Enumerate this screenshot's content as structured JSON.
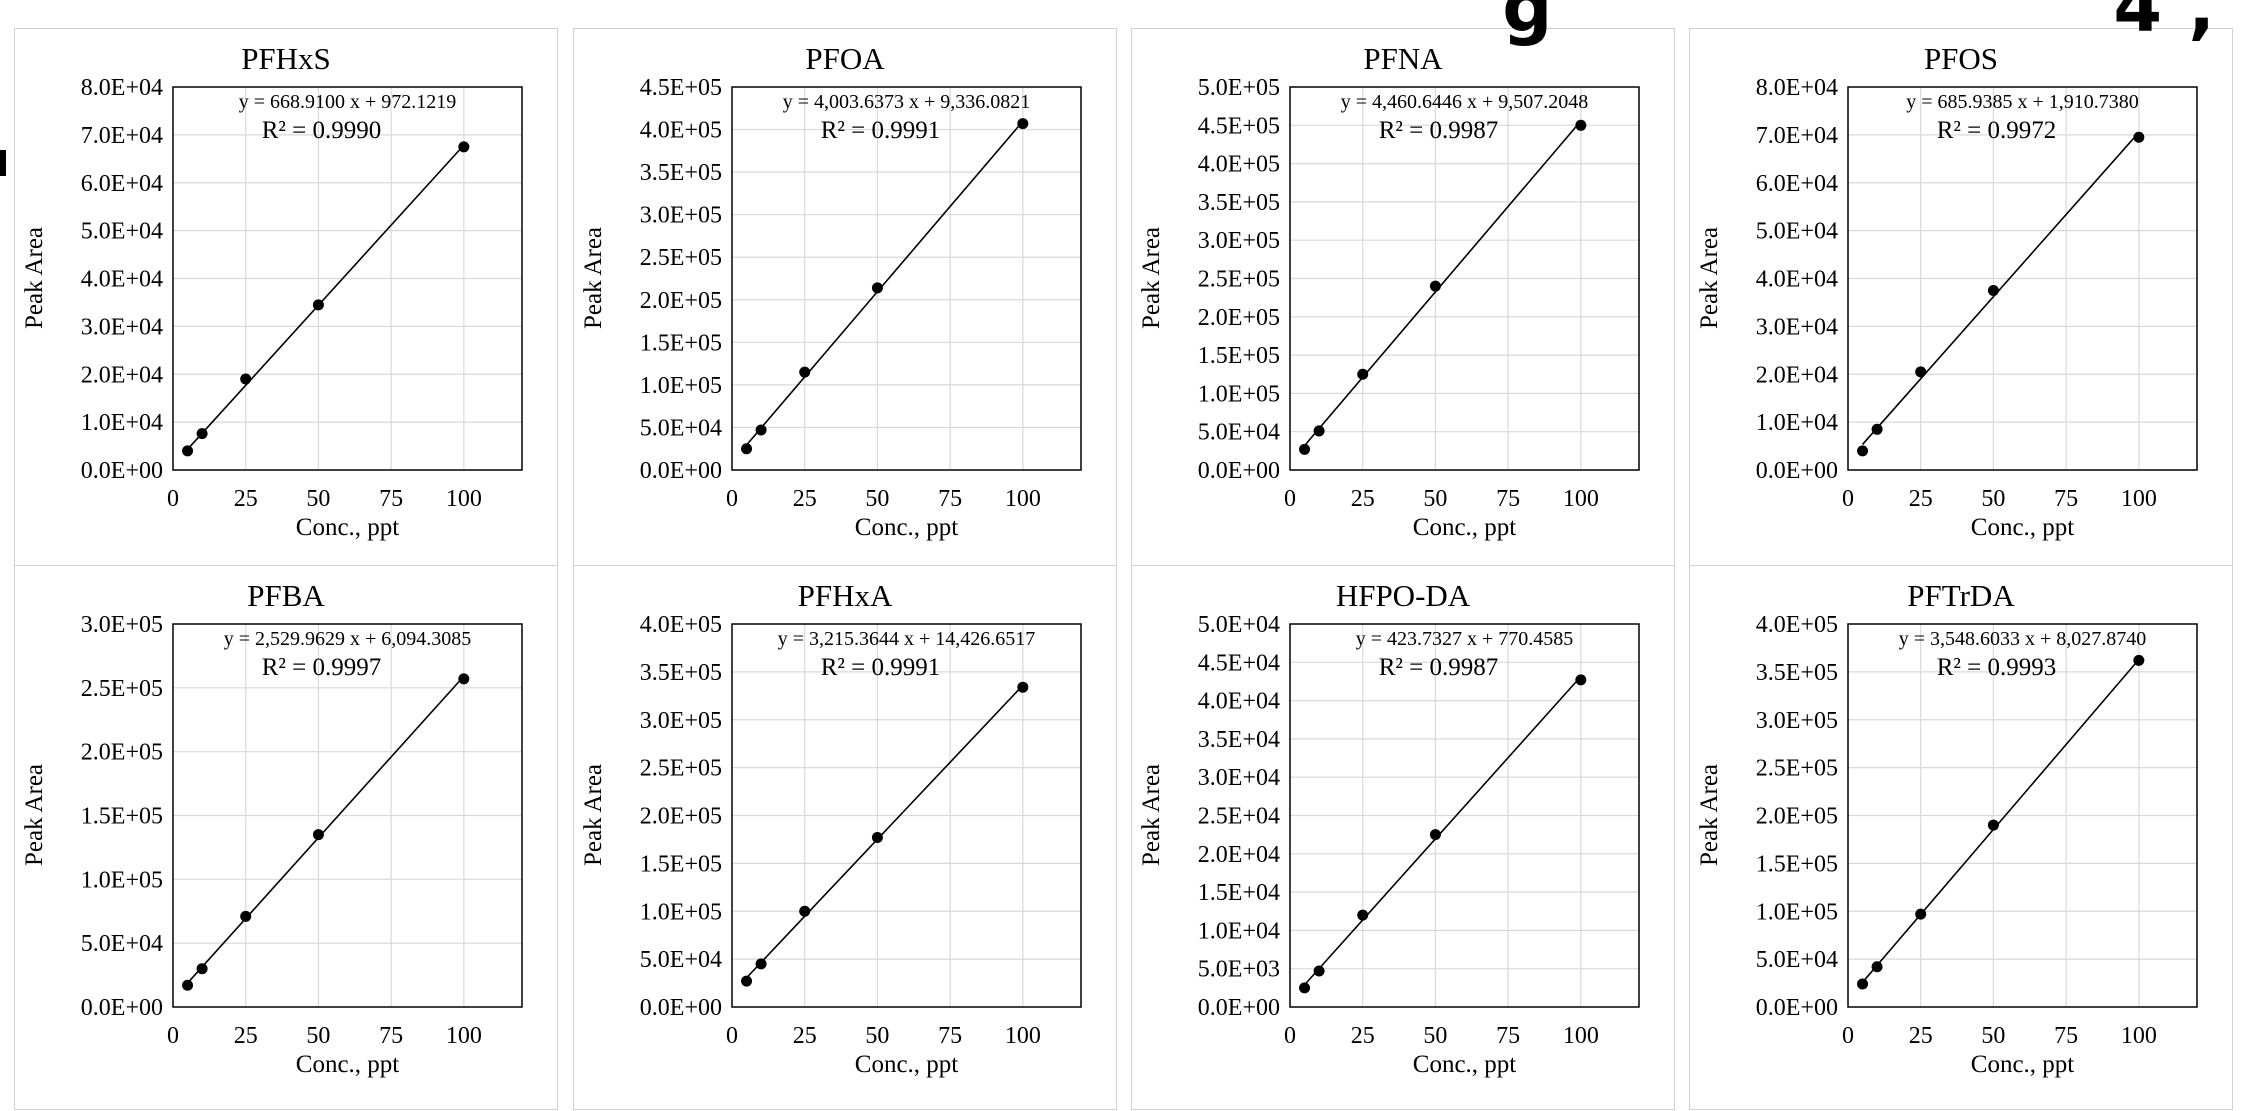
{
  "banner_fragment": "g",
  "banner_fragment_right": "4 ,",
  "chart_data": [
    {
      "type": "scatter",
      "title": "PFHxS",
      "xlabel": "Conc., ppt",
      "ylabel": "Peak Area",
      "x": [
        5,
        10,
        25,
        50,
        100
      ],
      "y": [
        4000,
        7600,
        19000,
        34500,
        67500
      ],
      "fit": {
        "slope": 668.91,
        "intercept": 972.1219
      },
      "equation": "y = 668.9100 x + 972.1219",
      "r2": "R² = 0.9990",
      "xlim": [
        0,
        120
      ],
      "ylim": [
        0,
        80000
      ],
      "xticks": [
        "0",
        "25",
        "50",
        "75",
        "100"
      ],
      "yticks": [
        "0.0E+00",
        "1.0E+04",
        "2.0E+04",
        "3.0E+04",
        "4.0E+04",
        "5.0E+04",
        "6.0E+04",
        "7.0E+04",
        "8.0E+04"
      ]
    },
    {
      "type": "scatter",
      "title": "PFOA",
      "xlabel": "Conc., ppt",
      "ylabel": "Peak Area",
      "x": [
        5,
        10,
        25,
        50,
        100
      ],
      "y": [
        25000,
        47000,
        115000,
        214000,
        407000
      ],
      "fit": {
        "slope": 4003.6373,
        "intercept": 9336.0821
      },
      "equation": "y = 4,003.6373 x + 9,336.0821",
      "r2": "R² = 0.9991",
      "xlim": [
        0,
        120
      ],
      "ylim": [
        0,
        450000
      ],
      "xticks": [
        "0",
        "25",
        "50",
        "75",
        "100"
      ],
      "yticks": [
        "0.0E+00",
        "5.0E+04",
        "1.0E+05",
        "1.5E+05",
        "2.0E+05",
        "2.5E+05",
        "3.0E+05",
        "3.5E+05",
        "4.0E+05",
        "4.5E+05"
      ]
    },
    {
      "type": "scatter",
      "title": "PFNA",
      "xlabel": "Conc., ppt",
      "ylabel": "Peak Area",
      "x": [
        5,
        10,
        25,
        50,
        100
      ],
      "y": [
        27000,
        51000,
        125000,
        240000,
        450000
      ],
      "fit": {
        "slope": 4460.6446,
        "intercept": 9507.2048
      },
      "equation": "y = 4,460.6446 x + 9,507.2048",
      "r2": "R² = 0.9987",
      "xlim": [
        0,
        120
      ],
      "ylim": [
        0,
        500000
      ],
      "xticks": [
        "0",
        "25",
        "50",
        "75",
        "100"
      ],
      "yticks": [
        "0.0E+00",
        "5.0E+04",
        "1.0E+05",
        "1.5E+05",
        "2.0E+05",
        "2.5E+05",
        "3.0E+05",
        "3.5E+05",
        "4.0E+05",
        "4.5E+05",
        "5.0E+05"
      ]
    },
    {
      "type": "scatter",
      "title": "PFOS",
      "xlabel": "Conc., ppt",
      "ylabel": "Peak Area",
      "x": [
        5,
        10,
        25,
        50,
        100
      ],
      "y": [
        4000,
        8500,
        20500,
        37500,
        69500
      ],
      "fit": {
        "slope": 685.9385,
        "intercept": 1910.738
      },
      "equation": "y = 685.9385 x + 1,910.7380",
      "r2": "R² = 0.9972",
      "xlim": [
        0,
        120
      ],
      "ylim": [
        0,
        80000
      ],
      "xticks": [
        "0",
        "25",
        "50",
        "75",
        "100"
      ],
      "yticks": [
        "0.0E+00",
        "1.0E+04",
        "2.0E+04",
        "3.0E+04",
        "4.0E+04",
        "5.0E+04",
        "6.0E+04",
        "7.0E+04",
        "8.0E+04"
      ]
    },
    {
      "type": "scatter",
      "title": "PFBA",
      "xlabel": "Conc., ppt",
      "ylabel": "Peak Area",
      "x": [
        5,
        10,
        25,
        50,
        100
      ],
      "y": [
        17000,
        30000,
        71000,
        135000,
        257000
      ],
      "fit": {
        "slope": 2529.9629,
        "intercept": 6094.3085
      },
      "equation": "y = 2,529.9629 x + 6,094.3085",
      "r2": "R² = 0.9997",
      "xlim": [
        0,
        120
      ],
      "ylim": [
        0,
        300000
      ],
      "xticks": [
        "0",
        "25",
        "50",
        "75",
        "100"
      ],
      "yticks": [
        "0.0E+00",
        "5.0E+04",
        "1.0E+05",
        "1.5E+05",
        "2.0E+05",
        "2.5E+05",
        "3.0E+05"
      ]
    },
    {
      "type": "scatter",
      "title": "PFHxA",
      "xlabel": "Conc., ppt",
      "ylabel": "Peak Area",
      "x": [
        5,
        10,
        25,
        50,
        100
      ],
      "y": [
        27000,
        45000,
        100000,
        177000,
        334000
      ],
      "fit": {
        "slope": 3215.3644,
        "intercept": 14426.6517
      },
      "equation": "y = 3,215.3644 x + 14,426.6517",
      "r2": "R² = 0.9991",
      "xlim": [
        0,
        120
      ],
      "ylim": [
        0,
        400000
      ],
      "xticks": [
        "0",
        "25",
        "50",
        "75",
        "100"
      ],
      "yticks": [
        "0.0E+00",
        "5.0E+04",
        "1.0E+05",
        "1.5E+05",
        "2.0E+05",
        "2.5E+05",
        "3.0E+05",
        "3.5E+05",
        "4.0E+05"
      ]
    },
    {
      "type": "scatter",
      "title": "HFPO-DA",
      "xlabel": "Conc., ppt",
      "ylabel": "Peak Area",
      "x": [
        5,
        10,
        25,
        50,
        100
      ],
      "y": [
        2500,
        4700,
        12000,
        22500,
        42700
      ],
      "fit": {
        "slope": 423.7327,
        "intercept": 770.4585
      },
      "equation": "y = 423.7327 x + 770.4585",
      "r2": "R² = 0.9987",
      "xlim": [
        0,
        120
      ],
      "ylim": [
        0,
        50000
      ],
      "xticks": [
        "0",
        "25",
        "50",
        "75",
        "100"
      ],
      "yticks": [
        "0.0E+00",
        "5.0E+03",
        "1.0E+04",
        "1.5E+04",
        "2.0E+04",
        "2.5E+04",
        "3.0E+04",
        "3.5E+04",
        "4.0E+04",
        "4.5E+04",
        "5.0E+04"
      ]
    },
    {
      "type": "scatter",
      "title": "PFTrDA",
      "xlabel": "Conc., ppt",
      "ylabel": "Peak Area",
      "x": [
        5,
        10,
        25,
        50,
        100
      ],
      "y": [
        24000,
        42000,
        97000,
        190000,
        362000
      ],
      "fit": {
        "slope": 3548.6033,
        "intercept": 8027.874
      },
      "equation": "y = 3,548.6033 x + 8,027.8740",
      "r2": "R² = 0.9993",
      "xlim": [
        0,
        120
      ],
      "ylim": [
        0,
        400000
      ],
      "xticks": [
        "0",
        "25",
        "50",
        "75",
        "100"
      ],
      "yticks": [
        "0.0E+00",
        "5.0E+04",
        "1.0E+05",
        "1.5E+05",
        "2.0E+05",
        "2.5E+05",
        "3.0E+05",
        "3.5E+05",
        "4.0E+05"
      ]
    }
  ]
}
